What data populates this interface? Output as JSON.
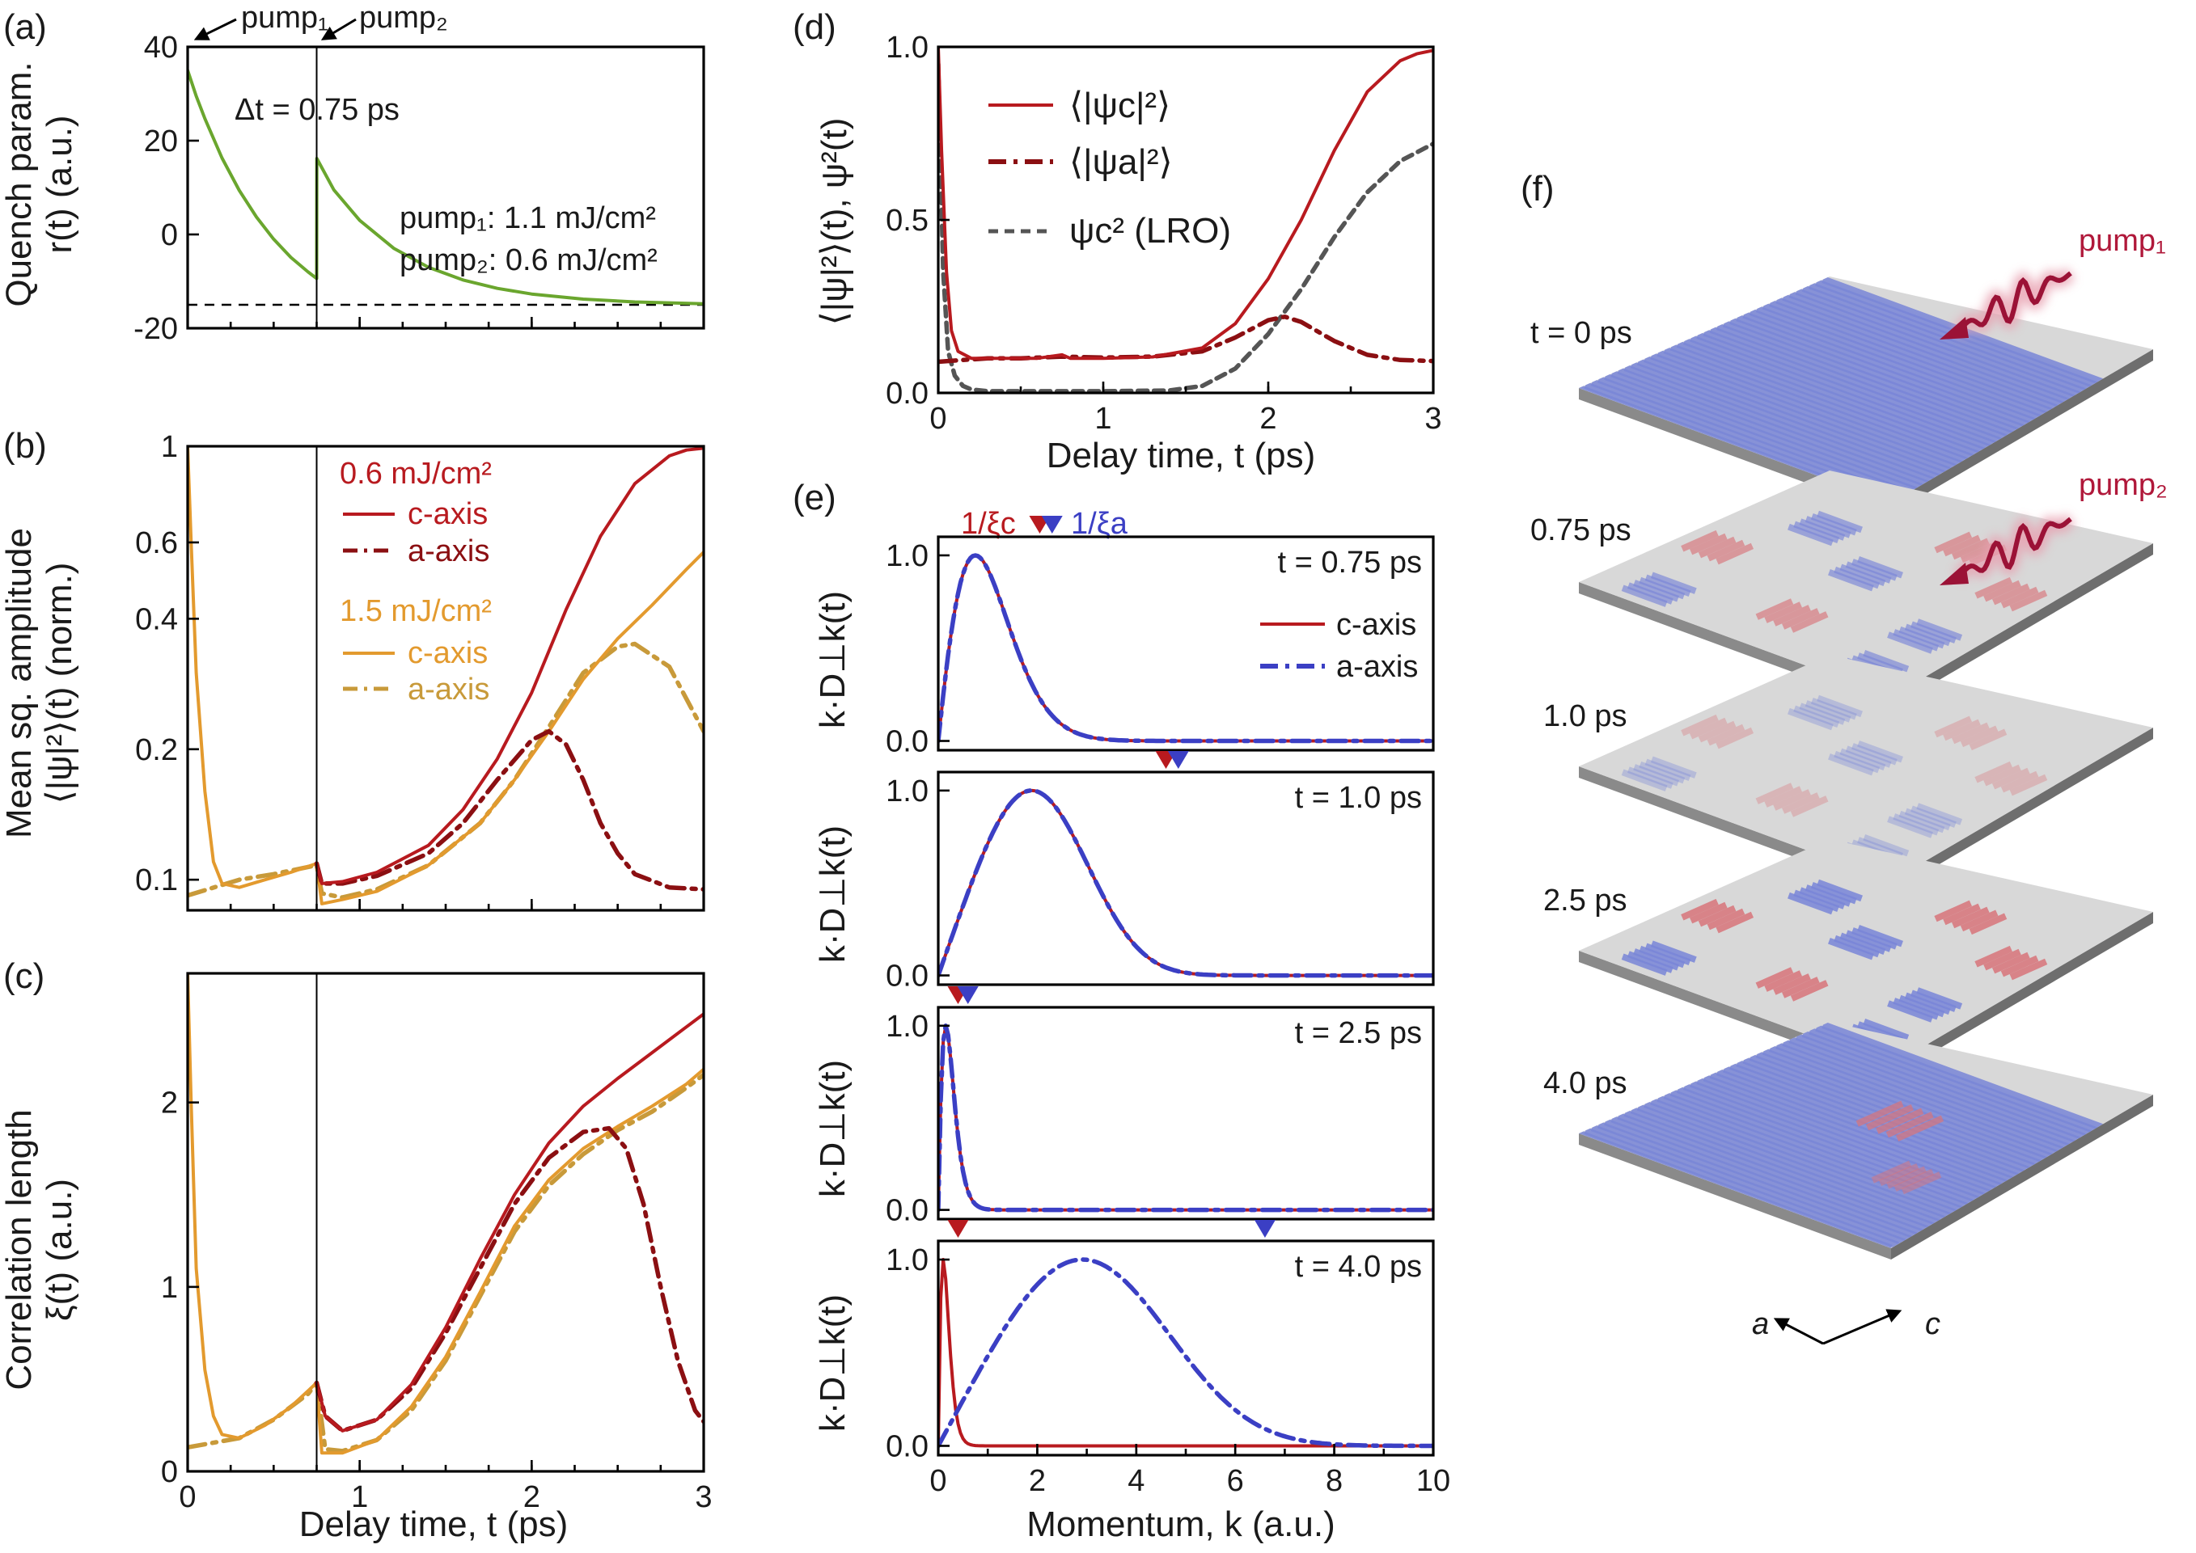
{
  "colors": {
    "c06": "#b81a1f",
    "a06": "#8b0f12",
    "c15": "#e39a2e",
    "a15": "#c89a3a",
    "green": "#6aa62e",
    "blue": "#3b3fc4",
    "gray": "#555555",
    "stripe_blue": "#7a86d8",
    "stripe_red": "#d9757b",
    "plate": "#d8d8d8"
  },
  "panels": {
    "a": {
      "label": "(a)",
      "ylabel1": "Quench param.",
      "ylabel2": "r(t) (a.u.)",
      "pump1_marker": "pump₁",
      "pump2_marker": "pump₂",
      "dt_label": "Δt = 0.75 ps",
      "pump1_text": "pump₁: 1.1 mJ/cm²",
      "pump2_text": "pump₂: 0.6 mJ/cm²"
    },
    "b": {
      "label": "(b)",
      "ylabel1": "Mean sq. amplitude",
      "ylabel2": "⟨|ψ|²⟩(t) (norm.)",
      "legend_title_1": "0.6 mJ/cm²",
      "legend_c_1": "c-axis",
      "legend_a_1": "a-axis",
      "legend_title_2": "1.5 mJ/cm²",
      "legend_c_2": "c-axis",
      "legend_a_2": "a-axis"
    },
    "c": {
      "label": "(c)",
      "ylabel1": "Correlation length",
      "ylabel2": "ξ(t) (a.u.)",
      "xlabel": "Delay time, t (ps)"
    },
    "d": {
      "label": "(d)",
      "ylabel": "⟨|ψ|²⟩(t), ψ²(t)",
      "xlabel": "Delay time, t (ps)",
      "legend_c": "⟨|ψc|²⟩",
      "legend_a": "⟨|ψa|²⟩",
      "legend_lro": "ψc² (LRO)"
    },
    "e": {
      "label": "(e)",
      "marker_c": "1/ξc",
      "marker_a": "1/ξa",
      "ylabel": "k·D⊥k(t)",
      "xlabel": "Momentum, k (a.u.)",
      "legend_c": "c-axis",
      "legend_a": "a-axis"
    },
    "f": {
      "label": "(f)",
      "pump1": "pump₁",
      "pump2": "pump₂",
      "axis_a": "a",
      "axis_c": "c",
      "layers": [
        "t = 0 ps",
        "0.75 ps",
        "1.0 ps",
        "2.5 ps",
        "4.0 ps"
      ]
    }
  },
  "chart_data": [
    {
      "id": "a",
      "type": "line",
      "xlim": [
        0,
        3
      ],
      "ylim": [
        -20,
        40
      ],
      "xticks": [
        0,
        1,
        2,
        3
      ],
      "yticks": [
        -20,
        0,
        20,
        40
      ],
      "ytick_labels": [
        "-20",
        "0",
        "20",
        "40"
      ],
      "vline": 0.75,
      "hline": -15,
      "series": [
        {
          "name": "r(t)",
          "color": "green",
          "dash": "solid",
          "x": [
            0,
            0.05,
            0.1,
            0.2,
            0.3,
            0.4,
            0.5,
            0.6,
            0.7,
            0.75,
            0.751,
            0.85,
            1.0,
            1.2,
            1.4,
            1.6,
            1.8,
            2.0,
            2.3,
            2.6,
            3.0
          ],
          "y": [
            35,
            29.5,
            24.7,
            16.3,
            9.4,
            3.7,
            -1.0,
            -4.9,
            -8.0,
            -9.4,
            16.2,
            9.5,
            3.0,
            -3.0,
            -7.0,
            -9.7,
            -11.5,
            -12.7,
            -13.8,
            -14.4,
            -14.8
          ]
        }
      ]
    },
    {
      "id": "b",
      "type": "line",
      "yscale": "log",
      "xlim": [
        0,
        3
      ],
      "ylim": [
        0.085,
        1.0
      ],
      "xticks": [
        0,
        1,
        2,
        3
      ],
      "yticks": [
        0.1,
        0.2,
        0.4,
        0.6,
        1
      ],
      "ytick_labels": [
        "0.1",
        "0.2",
        "0.4",
        "0.6",
        "1"
      ],
      "vline": 0.75,
      "series": [
        {
          "name": "1.5 mJ/cm² a-axis",
          "color": "a15",
          "dash": "dashdot",
          "x": [
            0,
            0.3,
            0.5,
            0.7,
            0.75,
            0.78,
            0.9,
            1.1,
            1.4,
            1.7,
            1.9,
            2.1,
            2.3,
            2.5,
            2.6,
            2.8,
            3.0
          ],
          "y": [
            0.092,
            0.1,
            0.103,
            0.107,
            0.108,
            0.093,
            0.091,
            0.095,
            0.108,
            0.135,
            0.17,
            0.225,
            0.3,
            0.345,
            0.35,
            0.31,
            0.22
          ]
        },
        {
          "name": "1.5 mJ/cm² c-axis",
          "color": "c15",
          "dash": "solid",
          "x": [
            0,
            0.02,
            0.05,
            0.1,
            0.15,
            0.2,
            0.3,
            0.45,
            0.6,
            0.75,
            0.78,
            0.9,
            1.1,
            1.4,
            1.7,
            1.9,
            2.1,
            2.3,
            2.5,
            2.7,
            2.9,
            3.0
          ],
          "y": [
            1.0,
            0.6,
            0.3,
            0.16,
            0.11,
            0.098,
            0.096,
            0.1,
            0.104,
            0.109,
            0.088,
            0.09,
            0.094,
            0.108,
            0.135,
            0.17,
            0.22,
            0.29,
            0.36,
            0.43,
            0.52,
            0.57
          ]
        },
        {
          "name": "0.6 mJ/cm² a-axis",
          "color": "a06",
          "dash": "dashdot",
          "x": [
            0.75,
            0.78,
            0.9,
            1.1,
            1.4,
            1.6,
            1.8,
            2.0,
            2.1,
            2.2,
            2.3,
            2.4,
            2.5,
            2.6,
            2.8,
            3.0
          ],
          "y": [
            0.109,
            0.098,
            0.098,
            0.102,
            0.115,
            0.135,
            0.17,
            0.21,
            0.22,
            0.205,
            0.17,
            0.135,
            0.115,
            0.103,
            0.096,
            0.095
          ]
        },
        {
          "name": "0.6 mJ/cm² c-axis",
          "color": "c06",
          "dash": "solid",
          "x": [
            0.75,
            0.78,
            0.9,
            1.1,
            1.4,
            1.6,
            1.8,
            2.0,
            2.2,
            2.4,
            2.6,
            2.8,
            2.9,
            3.0
          ],
          "y": [
            0.109,
            0.098,
            0.099,
            0.104,
            0.12,
            0.145,
            0.19,
            0.27,
            0.42,
            0.62,
            0.82,
            0.95,
            0.98,
            0.99
          ]
        }
      ]
    },
    {
      "id": "c",
      "type": "line",
      "xlim": [
        0,
        3
      ],
      "ylim": [
        0,
        2.7
      ],
      "xticks": [
        0,
        1,
        2,
        3
      ],
      "yticks": [
        0,
        1,
        2
      ],
      "ytick_labels": [
        "0",
        "1",
        "2"
      ],
      "vline": 0.75,
      "series": [
        {
          "name": "1.5 mJ/cm² a-axis",
          "color": "a15",
          "dash": "dashdot",
          "x": [
            0,
            0.3,
            0.5,
            0.7,
            0.75,
            0.8,
            0.9,
            1.1,
            1.3,
            1.5,
            1.7,
            1.9,
            2.1,
            2.3,
            2.5,
            2.7,
            2.9,
            3.0
          ],
          "y": [
            0.13,
            0.18,
            0.28,
            0.42,
            0.48,
            0.12,
            0.11,
            0.17,
            0.33,
            0.6,
            0.95,
            1.3,
            1.55,
            1.72,
            1.85,
            1.95,
            2.08,
            2.15
          ]
        },
        {
          "name": "1.5 mJ/cm² c-axis",
          "color": "c15",
          "dash": "solid",
          "x": [
            0,
            0.02,
            0.05,
            0.1,
            0.15,
            0.2,
            0.3,
            0.45,
            0.6,
            0.75,
            0.78,
            0.9,
            1.1,
            1.3,
            1.5,
            1.7,
            1.9,
            2.1,
            2.3,
            2.5,
            2.7,
            2.9,
            3.0
          ],
          "y": [
            2.7,
            2.0,
            1.1,
            0.55,
            0.3,
            0.2,
            0.18,
            0.25,
            0.35,
            0.48,
            0.1,
            0.1,
            0.17,
            0.35,
            0.62,
            0.97,
            1.33,
            1.58,
            1.75,
            1.87,
            1.98,
            2.1,
            2.18
          ]
        },
        {
          "name": "0.6 mJ/cm² a-axis",
          "color": "a06",
          "dash": "dashdot",
          "x": [
            0.75,
            0.8,
            0.9,
            1.1,
            1.3,
            1.5,
            1.7,
            1.9,
            2.1,
            2.3,
            2.45,
            2.55,
            2.65,
            2.75,
            2.85,
            2.95,
            3.0
          ],
          "y": [
            0.48,
            0.3,
            0.22,
            0.28,
            0.45,
            0.75,
            1.1,
            1.45,
            1.7,
            1.84,
            1.86,
            1.75,
            1.45,
            1.0,
            0.6,
            0.33,
            0.27
          ]
        },
        {
          "name": "0.6 mJ/cm² c-axis",
          "color": "c06",
          "dash": "solid",
          "x": [
            0.75,
            0.8,
            0.9,
            1.1,
            1.3,
            1.5,
            1.7,
            1.9,
            2.1,
            2.3,
            2.5,
            2.7,
            2.9,
            3.0
          ],
          "y": [
            0.48,
            0.3,
            0.22,
            0.28,
            0.47,
            0.78,
            1.15,
            1.5,
            1.78,
            1.98,
            2.13,
            2.27,
            2.41,
            2.48
          ]
        }
      ]
    },
    {
      "id": "d",
      "type": "line",
      "xlim": [
        0,
        3
      ],
      "ylim": [
        0,
        1.0
      ],
      "xticks": [
        0,
        1,
        2,
        3
      ],
      "yticks": [
        0,
        0.5,
        1.0
      ],
      "xtick_labels": [
        "0",
        "1",
        "2",
        "3"
      ],
      "ytick_labels": [
        "0.0",
        "0.5",
        "1.0"
      ],
      "series": [
        {
          "name": "ψc² (LRO)",
          "color": "gray",
          "dash": "dash",
          "x": [
            0,
            0.03,
            0.06,
            0.1,
            0.15,
            0.2,
            0.3,
            0.6,
            1.0,
            1.4,
            1.6,
            1.8,
            2.0,
            2.2,
            2.4,
            2.6,
            2.8,
            3.0
          ],
          "y": [
            0.95,
            0.35,
            0.12,
            0.05,
            0.02,
            0.01,
            0.005,
            0.005,
            0.005,
            0.007,
            0.02,
            0.07,
            0.17,
            0.3,
            0.45,
            0.58,
            0.67,
            0.72
          ]
        },
        {
          "name": "⟨|ψa|²⟩",
          "color": "a06",
          "dash": "dashdot",
          "x": [
            0,
            0.15,
            0.3,
            0.5,
            0.75,
            1.0,
            1.3,
            1.6,
            1.8,
            2.0,
            2.1,
            2.2,
            2.4,
            2.6,
            2.8,
            3.0
          ],
          "y": [
            0.09,
            0.095,
            0.1,
            0.1,
            0.105,
            0.102,
            0.105,
            0.12,
            0.16,
            0.21,
            0.22,
            0.205,
            0.15,
            0.11,
            0.095,
            0.092
          ]
        },
        {
          "name": "⟨|ψc|²⟩",
          "color": "c06",
          "dash": "solid",
          "x": [
            0,
            0.02,
            0.05,
            0.08,
            0.12,
            0.2,
            0.4,
            0.6,
            0.75,
            0.8,
            1.0,
            1.3,
            1.6,
            1.8,
            2.0,
            2.2,
            2.4,
            2.6,
            2.8,
            2.9,
            3.0
          ],
          "y": [
            1.0,
            0.7,
            0.35,
            0.18,
            0.12,
            0.1,
            0.1,
            0.1,
            0.11,
            0.1,
            0.1,
            0.104,
            0.13,
            0.2,
            0.33,
            0.5,
            0.7,
            0.87,
            0.96,
            0.98,
            0.99
          ]
        }
      ]
    },
    {
      "id": "e1",
      "type": "line",
      "title": "t = 0.75 ps",
      "xlim": [
        0,
        10
      ],
      "ylim": [
        -0.05,
        1.1
      ],
      "yticks": [
        0,
        1.0
      ],
      "ytick_labels": [
        "0.0",
        "1.0"
      ],
      "marker_c_x": 2.05,
      "marker_a_x": 2.3,
      "series": [
        {
          "name": "c-axis",
          "color": "c06",
          "dash": "solid",
          "kpk": 1.4,
          "tail": 1.7
        },
        {
          "name": "a-axis",
          "color": "blue",
          "dash": "dashdot",
          "kpk": 1.4,
          "tail": 1.7
        }
      ]
    },
    {
      "id": "e2",
      "type": "line",
      "title": "t = 1.0 ps",
      "xlim": [
        0,
        10
      ],
      "ylim": [
        -0.05,
        1.1
      ],
      "yticks": [
        0,
        1.0
      ],
      "ytick_labels": [
        "0.0",
        "1.0"
      ],
      "marker_c_x": 4.6,
      "marker_a_x": 4.85,
      "series": [
        {
          "name": "c-axis",
          "color": "c06",
          "dash": "solid",
          "kpk": 2.2,
          "tail": 0.55
        },
        {
          "name": "a-axis",
          "color": "blue",
          "dash": "dashdot",
          "kpk": 2.2,
          "tail": 0.55
        }
      ]
    },
    {
      "id": "e3",
      "type": "line",
      "title": "t = 2.5 ps",
      "xlim": [
        0,
        10
      ],
      "ylim": [
        -0.05,
        1.1
      ],
      "yticks": [
        0,
        1.0
      ],
      "ytick_labels": [
        "0.0",
        "1.0"
      ],
      "marker_c_x": 0.4,
      "marker_a_x": 0.6,
      "series": [
        {
          "name": "c-axis",
          "color": "c06",
          "dash": "solid",
          "kpk": 0.55,
          "tail": 4.0
        },
        {
          "name": "a-axis",
          "color": "blue",
          "dash": "dashdot",
          "kpk": 0.55,
          "tail": 4.0
        }
      ]
    },
    {
      "id": "e4",
      "type": "line",
      "title": "t = 4.0 ps",
      "xlim": [
        0,
        10
      ],
      "ylim": [
        -0.05,
        1.1
      ],
      "yticks": [
        0,
        1.0
      ],
      "xticks": [
        0,
        2,
        4,
        6,
        8,
        10
      ],
      "xtick_labels": [
        "0",
        "2",
        "4",
        "6",
        "8",
        "10"
      ],
      "ytick_labels": [
        "0.0",
        "1.0"
      ],
      "marker_c_x": 0.4,
      "marker_a_x": 6.6,
      "series": [
        {
          "name": "c-axis",
          "color": "c06",
          "dash": "solid",
          "kpk": 0.45,
          "tail": 5.0
        },
        {
          "name": "a-axis",
          "color": "blue",
          "dash": "dashdot",
          "kpk": 3.4,
          "tail": 0.55
        }
      ]
    }
  ]
}
